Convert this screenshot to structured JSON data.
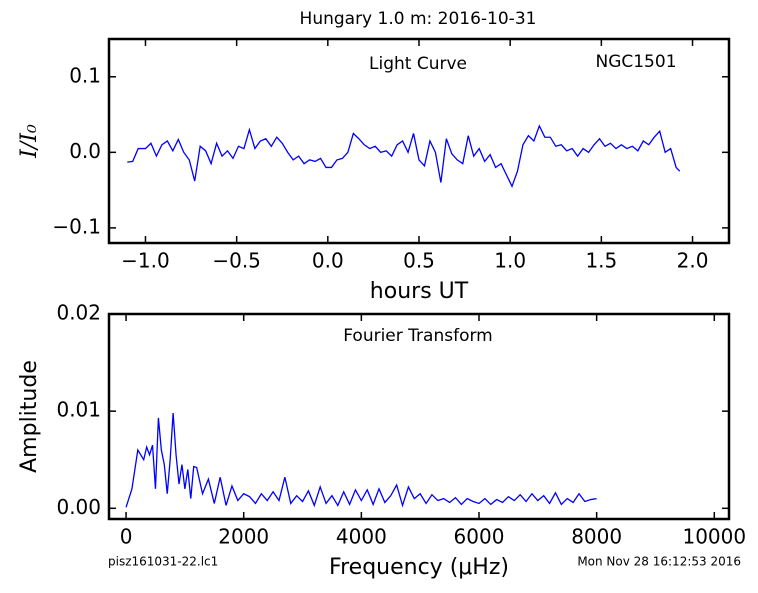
{
  "figure": {
    "title": "Hungary 1.0 m:  2016-10-31",
    "file": "pisz161031-22.lc1",
    "timestamp": "Mon Nov 28 16:12:53 2016"
  },
  "chart_data": [
    {
      "type": "line",
      "xlabel": "hours UT",
      "ylabel": "I/I₀",
      "annotations": [
        "Light Curve",
        "NGC1501"
      ],
      "color": "#0000ff",
      "xlim": [
        -1.2,
        2.2
      ],
      "ylim": [
        -0.12,
        0.15
      ],
      "xticks": [
        {
          "value": -1.0,
          "label": "−1.0"
        },
        {
          "value": -0.5,
          "label": "−0.5"
        },
        {
          "value": 0,
          "label": "0.0"
        },
        0.5,
        {
          "value": 1,
          "label": "1.0"
        },
        1.5,
        {
          "value": 2,
          "label": "2.0"
        }
      ],
      "yticks": [
        {
          "value": -0.1,
          "label": "−0.1"
        },
        {
          "value": 0,
          "label": "0.0"
        },
        0.1
      ],
      "x": [
        -1.1,
        -1.07,
        -1.04,
        -1.0,
        -0.97,
        -0.94,
        -0.91,
        -0.88,
        -0.85,
        -0.82,
        -0.79,
        -0.76,
        -0.73,
        -0.7,
        -0.67,
        -0.64,
        -0.61,
        -0.58,
        -0.55,
        -0.52,
        -0.49,
        -0.46,
        -0.43,
        -0.4,
        -0.37,
        -0.34,
        -0.31,
        -0.28,
        -0.25,
        -0.22,
        -0.19,
        -0.16,
        -0.13,
        -0.1,
        -0.07,
        -0.04,
        -0.01,
        0.02,
        0.05,
        0.08,
        0.11,
        0.14,
        0.17,
        0.2,
        0.23,
        0.26,
        0.29,
        0.32,
        0.35,
        0.38,
        0.41,
        0.44,
        0.47,
        0.5,
        0.53,
        0.56,
        0.59,
        0.62,
        0.65,
        0.68,
        0.71,
        0.74,
        0.77,
        0.8,
        0.83,
        0.86,
        0.89,
        0.92,
        0.95,
        0.98,
        1.01,
        1.04,
        1.07,
        1.1,
        1.13,
        1.16,
        1.19,
        1.22,
        1.25,
        1.28,
        1.31,
        1.34,
        1.37,
        1.4,
        1.43,
        1.46,
        1.49,
        1.52,
        1.55,
        1.58,
        1.61,
        1.64,
        1.67,
        1.7,
        1.73,
        1.76,
        1.79,
        1.82,
        1.85,
        1.88,
        1.91,
        1.93
      ],
      "values": [
        -0.013,
        -0.012,
        0.005,
        0.005,
        0.012,
        -0.005,
        0.01,
        0.015,
        0.002,
        0.017,
        0.0,
        -0.01,
        -0.038,
        0.008,
        0.002,
        -0.015,
        0.012,
        -0.005,
        0.002,
        -0.008,
        0.008,
        0.005,
        0.03,
        0.005,
        0.015,
        0.018,
        0.008,
        0.02,
        0.012,
        0.0,
        -0.01,
        -0.005,
        -0.015,
        -0.01,
        -0.012,
        -0.008,
        -0.02,
        -0.02,
        -0.01,
        -0.008,
        0.0,
        0.025,
        0.018,
        0.01,
        0.005,
        0.008,
        0.0,
        0.002,
        -0.005,
        0.01,
        0.015,
        0.0,
        0.025,
        -0.01,
        -0.018,
        0.015,
        0.0,
        -0.04,
        0.018,
        -0.002,
        -0.01,
        -0.015,
        0.022,
        -0.005,
        0.005,
        -0.012,
        -0.003,
        -0.02,
        -0.015,
        -0.03,
        -0.045,
        -0.025,
        0.01,
        0.022,
        0.015,
        0.035,
        0.02,
        0.02,
        0.008,
        0.01,
        0.002,
        0.005,
        -0.005,
        0.005,
        0.0,
        0.01,
        0.018,
        0.008,
        0.012,
        0.005,
        0.01,
        0.005,
        0.008,
        0.002,
        0.015,
        0.01,
        0.02,
        0.028,
        0.0,
        0.005,
        -0.02,
        -0.025
      ]
    },
    {
      "type": "line",
      "xlabel": "Frequency (μHz)",
      "ylabel": "Amplitude",
      "annotations": [
        "Fourier Transform"
      ],
      "color": "#0000ff",
      "xlim": [
        -290,
        10250
      ],
      "ylim": [
        -0.0011,
        0.02
      ],
      "xticks": [
        0,
        2000,
        4000,
        6000,
        8000,
        10000
      ],
      "yticks": [
        {
          "value": 0,
          "label": "0.00"
        },
        {
          "value": 0.01,
          "label": "0.01"
        },
        {
          "value": 0.02,
          "label": "0.02"
        }
      ],
      "x": [
        0,
        100,
        200,
        300,
        350,
        400,
        450,
        500,
        550,
        600,
        650,
        700,
        750,
        800,
        850,
        900,
        950,
        1000,
        1050,
        1100,
        1150,
        1200,
        1300,
        1400,
        1500,
        1600,
        1700,
        1800,
        1900,
        2000,
        2100,
        2200,
        2300,
        2400,
        2500,
        2600,
        2700,
        2800,
        2900,
        3000,
        3100,
        3200,
        3300,
        3400,
        3500,
        3600,
        3700,
        3800,
        3900,
        4000,
        4100,
        4200,
        4300,
        4400,
        4500,
        4600,
        4700,
        4800,
        4900,
        5000,
        5100,
        5200,
        5300,
        5400,
        5500,
        5600,
        5700,
        5800,
        5900,
        6000,
        6100,
        6200,
        6300,
        6400,
        6500,
        6600,
        6700,
        6800,
        6900,
        7000,
        7100,
        7200,
        7300,
        7400,
        7500,
        7600,
        7700,
        7800,
        7900,
        8000
      ],
      "values": [
        0.0001,
        0.002,
        0.006,
        0.005,
        0.0063,
        0.0055,
        0.0065,
        0.002,
        0.0093,
        0.006,
        0.0045,
        0.0015,
        0.005,
        0.0098,
        0.0055,
        0.0025,
        0.0045,
        0.002,
        0.004,
        0.001,
        0.0043,
        0.0042,
        0.0015,
        0.003,
        0.0005,
        0.0032,
        0.0003,
        0.0023,
        0.0008,
        0.0015,
        0.0012,
        0.0005,
        0.0015,
        0.0008,
        0.0017,
        0.0008,
        0.0032,
        0.0005,
        0.0013,
        0.0007,
        0.0018,
        0.0003,
        0.0022,
        0.0005,
        0.0013,
        0.0003,
        0.0017,
        0.0004,
        0.0019,
        0.0008,
        0.0019,
        0.0004,
        0.002,
        0.0006,
        0.0013,
        0.0024,
        0.0003,
        0.0022,
        0.001,
        0.0015,
        0.0005,
        0.0014,
        0.0008,
        0.001,
        0.0006,
        0.0011,
        0.0004,
        0.001,
        0.0007,
        0.0005,
        0.001,
        0.0004,
        0.0009,
        0.0006,
        0.0012,
        0.0008,
        0.0014,
        0.0007,
        0.0015,
        0.0008,
        0.0013,
        0.0005,
        0.0016,
        0.0004,
        0.001,
        0.0006,
        0.0015,
        0.0007,
        0.0009,
        0.001
      ]
    }
  ]
}
